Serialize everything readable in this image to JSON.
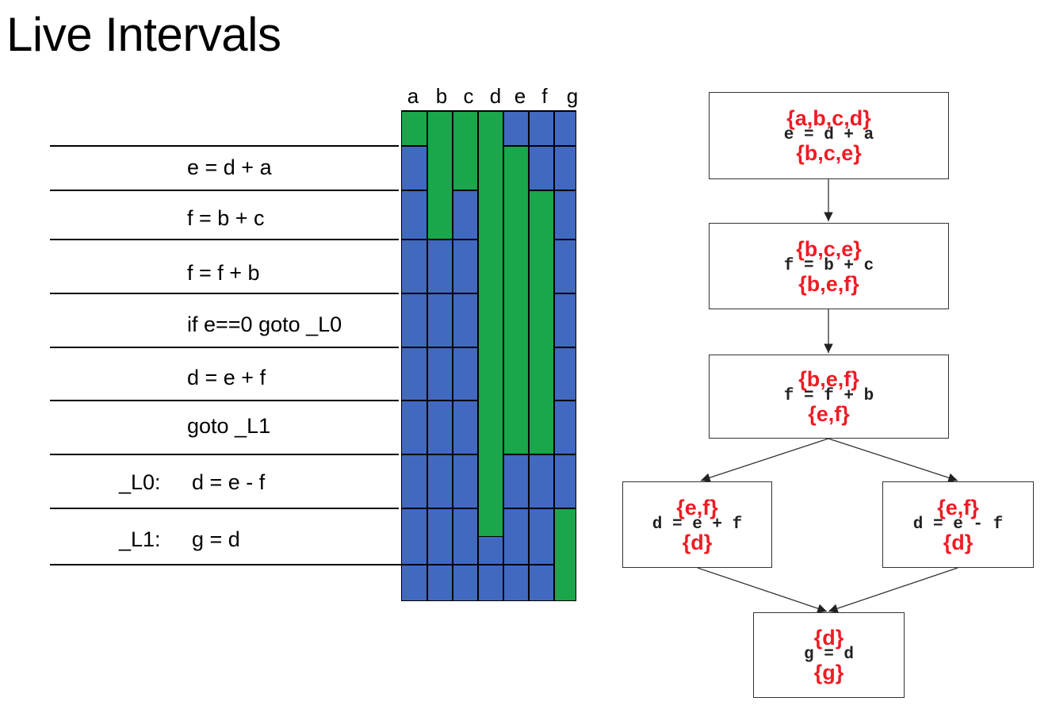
{
  "title": "Live Intervals",
  "variables": [
    "a",
    "b",
    "c",
    "d",
    "e",
    "f",
    "g"
  ],
  "instructions": [
    {
      "label": "",
      "text": "e = d + a"
    },
    {
      "label": "",
      "text": "f = b + c"
    },
    {
      "label": "",
      "text": "f = f + b"
    },
    {
      "label": "",
      "text": "if e==0 goto _L0"
    },
    {
      "label": "",
      "text": "d = e + f"
    },
    {
      "label": "",
      "text": "goto _L1"
    },
    {
      "label": "_L0:",
      "text": "d = e - f"
    },
    {
      "label": "_L1:",
      "text": "g = d"
    }
  ],
  "legend_colors": {
    "live": "#1aa64a",
    "dead": "#4169bf"
  },
  "live_intervals": [
    {
      "var": "a",
      "start": 0,
      "end": 1
    },
    {
      "var": "b",
      "start": 0,
      "end": 3
    },
    {
      "var": "c",
      "start": 0,
      "end": 2
    },
    {
      "var": "d",
      "start": 0,
      "end": 8.5
    },
    {
      "var": "e",
      "start": 1,
      "end": 7
    },
    {
      "var": "f",
      "start": 2,
      "end": 7
    },
    {
      "var": "g",
      "start": 8,
      "end": 9
    }
  ],
  "cfg": {
    "blocks": [
      {
        "id": "b1",
        "in": "{a,b,c,d}",
        "code": "e = d + a",
        "out": "{b,c,e}"
      },
      {
        "id": "b2",
        "in": "{b,c,e}",
        "code": "f = b + c",
        "out": "{b,e,f}"
      },
      {
        "id": "b3",
        "in": "{b,e,f}",
        "code": "f = f + b",
        "out": "{e,f}"
      },
      {
        "id": "b4",
        "in": "{e,f}",
        "code": "d = e + f",
        "out": "{d}"
      },
      {
        "id": "b5",
        "in": "{e,f}",
        "code": "d = e - f",
        "out": "{d}"
      },
      {
        "id": "b6",
        "in": "{d}",
        "code": "g = d",
        "out": "{g}"
      }
    ],
    "edges": [
      [
        "b1",
        "b2"
      ],
      [
        "b2",
        "b3"
      ],
      [
        "b3",
        "b4"
      ],
      [
        "b3",
        "b5"
      ],
      [
        "b4",
        "b6"
      ],
      [
        "b5",
        "b6"
      ]
    ]
  }
}
